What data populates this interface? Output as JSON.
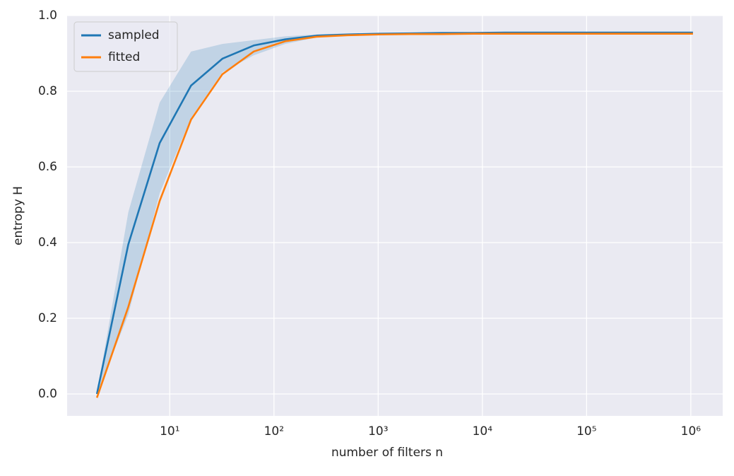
{
  "chart_data": {
    "type": "line",
    "xlabel": "number of filters n",
    "ylabel": "entropy H",
    "x": [
      2,
      4,
      8,
      16,
      32,
      64,
      128,
      256,
      512,
      1024,
      2048,
      4096,
      8192,
      16384,
      32768,
      65536,
      131072,
      262144,
      524288,
      1048576
    ],
    "series": [
      {
        "name": "sampled",
        "color": "#1f77b4",
        "values": [
          0.0,
          0.395,
          0.663,
          0.815,
          0.886,
          0.921,
          0.937,
          0.947,
          0.95,
          0.952,
          0.953,
          0.954,
          0.954,
          0.955,
          0.955,
          0.955,
          0.955,
          0.955,
          0.955,
          0.955
        ]
      },
      {
        "name": "fitted",
        "color": "#ff7f0e",
        "values": [
          -0.01,
          0.23,
          0.51,
          0.725,
          0.845,
          0.905,
          0.932,
          0.944,
          0.948,
          0.95,
          0.951,
          0.951,
          0.952,
          0.952,
          0.952,
          0.952,
          0.952,
          0.952,
          0.952,
          0.952
        ]
      }
    ],
    "band": {
      "color": "#1f77b4",
      "opacity": 0.2,
      "lower": [
        0.0,
        0.21,
        0.53,
        0.73,
        0.85,
        0.895,
        0.925,
        0.942,
        0.948,
        0.95,
        0.951,
        0.952,
        0.952,
        0.953,
        0.953,
        0.953,
        0.953,
        0.953,
        0.953,
        0.953
      ],
      "upper": [
        0.0,
        0.48,
        0.77,
        0.905,
        0.925,
        0.935,
        0.945,
        0.95,
        0.953,
        0.954,
        0.955,
        0.956,
        0.956,
        0.956,
        0.956,
        0.956,
        0.956,
        0.956,
        0.956,
        0.956
      ]
    },
    "xscale": "log",
    "xlim": [
      1.035,
      2023000
    ],
    "xticks": [
      {
        "value": 10,
        "label": "10¹"
      },
      {
        "value": 100,
        "label": "10²"
      },
      {
        "value": 1000,
        "label": "10³"
      },
      {
        "value": 10000,
        "label": "10⁴"
      },
      {
        "value": 100000,
        "label": "10⁵"
      },
      {
        "value": 1000000,
        "label": "10⁶"
      }
    ],
    "ylim": [
      -0.058,
      1.0
    ],
    "yticks": [
      {
        "value": 0,
        "label": "0.0"
      },
      0.2,
      0.4,
      0.6,
      0.8,
      {
        "value": 1,
        "label": "1.0"
      }
    ],
    "grid": true,
    "legend": "upper left"
  }
}
